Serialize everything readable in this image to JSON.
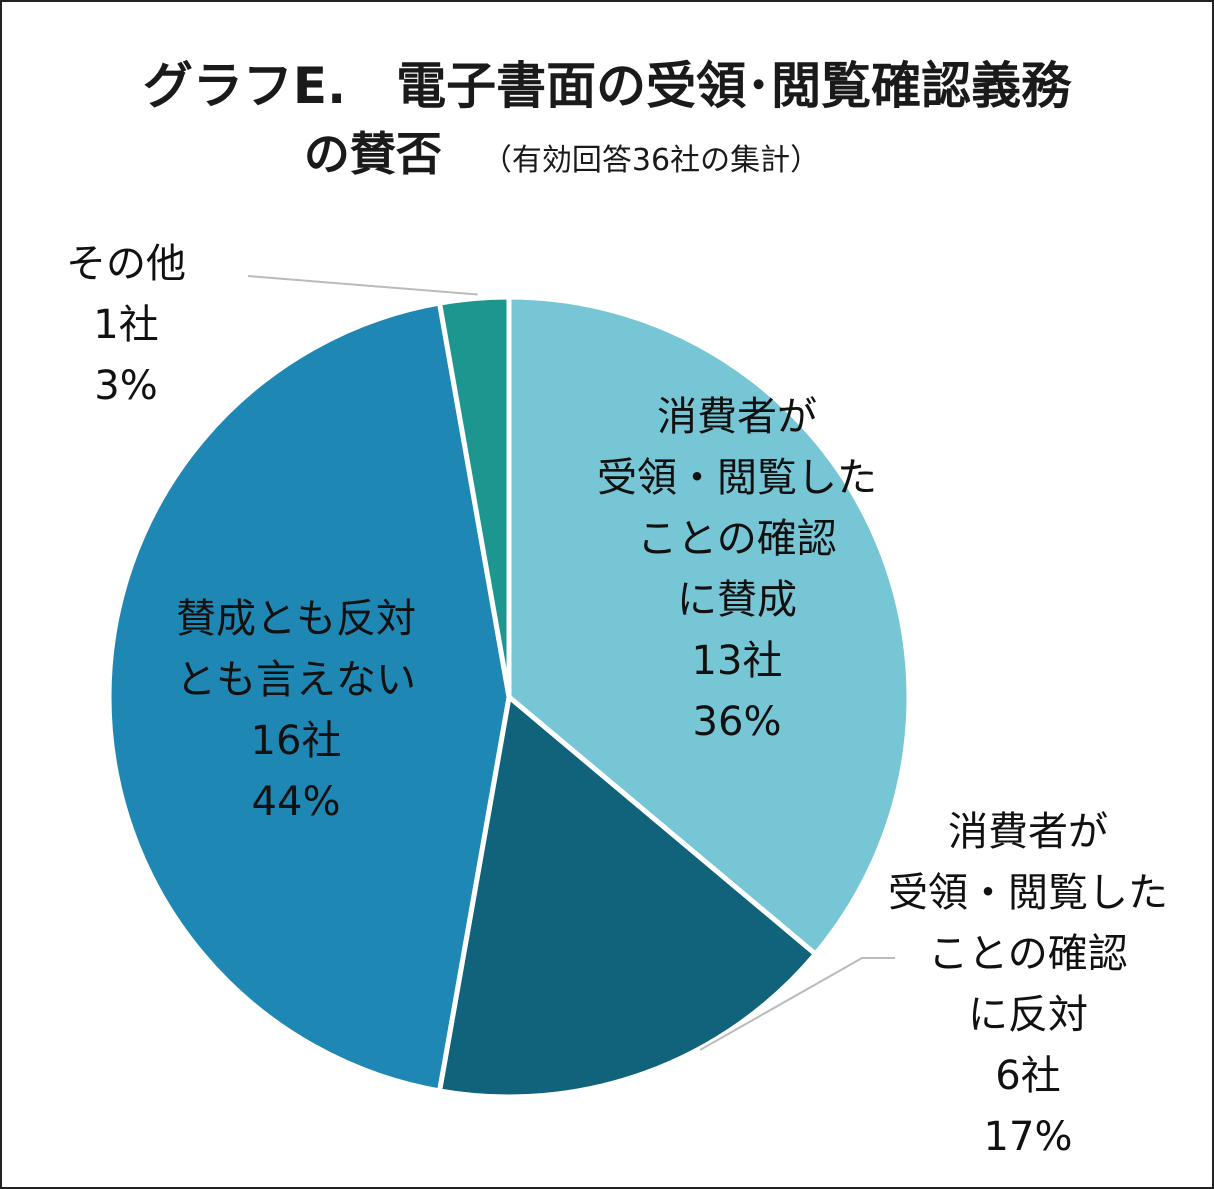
{
  "title_line1": "グラフE.　電子書面の受領･閲覧確認義務",
  "title_line2": "の賛否",
  "subtitle": "（有効回答36社の集計）",
  "colors": {
    "slice_agree": "#77C6D6",
    "slice_oppose": "#10637B",
    "slice_neutral": "#1F87B3",
    "slice_other": "#1E9690",
    "leader_line": "#BBBBBB",
    "frame": "#222222"
  },
  "chart_data": {
    "type": "pie",
    "title": "グラフE.　電子書面の受領･閲覧確認義務の賛否",
    "subtitle": "（有効回答36社の集計）",
    "slices": [
      {
        "label": [
          "消費者が",
          "受領・閲覧した",
          "ことの確認",
          "に賛成"
        ],
        "count": "13社",
        "percent": "36%",
        "value": 13
      },
      {
        "label": [
          "消費者が",
          "受領・閲覧した",
          "ことの確認",
          "に反対"
        ],
        "count": "6社",
        "percent": "17%",
        "value": 6
      },
      {
        "label": [
          "賛成とも反対",
          "とも言えない"
        ],
        "count": "16社",
        "percent": "44%",
        "value": 16
      },
      {
        "label": [
          "その他"
        ],
        "count": "1社",
        "percent": "3%",
        "value": 1
      }
    ],
    "total": 36
  }
}
